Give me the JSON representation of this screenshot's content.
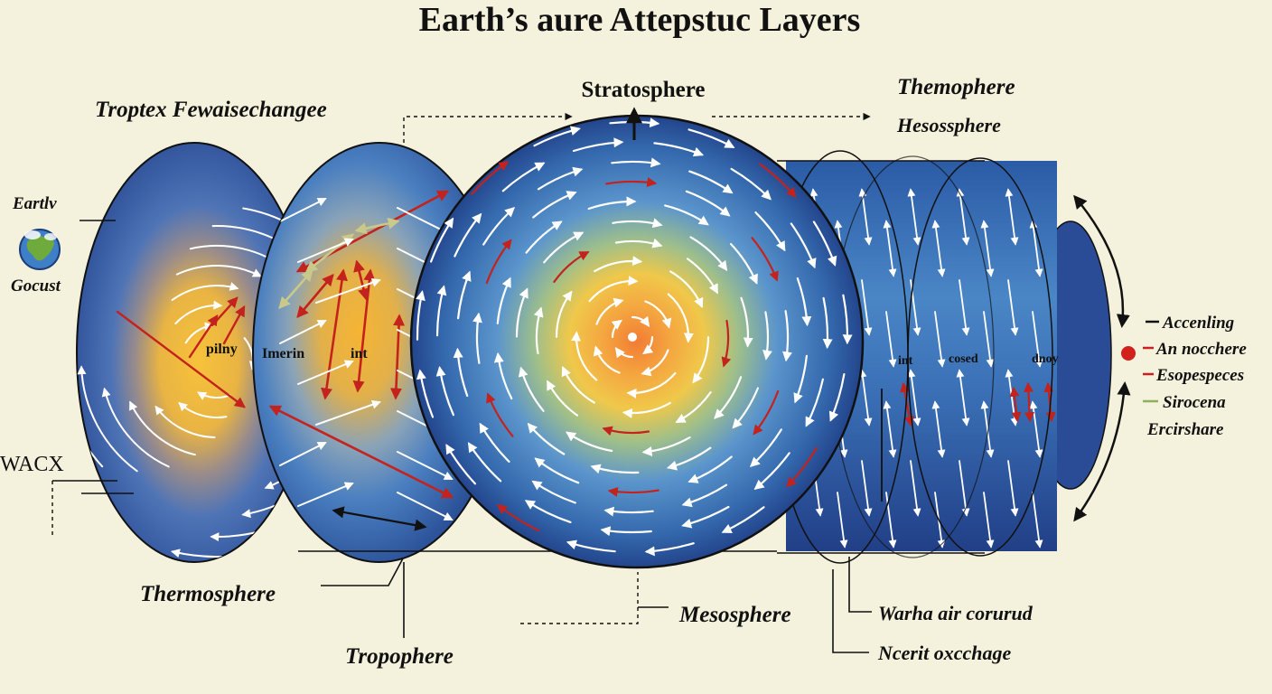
{
  "title": "Earth’s aure Attepstuc Layers",
  "labels": {
    "top_left": "Troptex Fewaisechangee",
    "stratosphere": "Stratosphere",
    "themophere": "Themophere",
    "hesossphere": "Hesossphere",
    "earth_top": "Eartlv",
    "earth_bottom": "Gocust",
    "wacx": "WACX",
    "thermosphere": "Thermosphere",
    "tropophere": "Tropophere",
    "mesosphere": "Mesosphere",
    "warha": "Warha air corurud",
    "ncerit": "Ncerit oxcchage"
  },
  "inner_labels": {
    "pilny": "pilny",
    "imerin": "Imerin",
    "int_left": "int",
    "int_right": "int",
    "cosed": "cosed",
    "dnoy": "dnoy"
  },
  "legend": [
    {
      "marker": "dash",
      "color": "#111111",
      "text": "Accenling"
    },
    {
      "marker": "dot-dash",
      "color": "#cc1f1f",
      "text": "An nocchere"
    },
    {
      "marker": "dash",
      "color": "#cc1f1f",
      "text": "Esopespeces"
    },
    {
      "marker": "dash",
      "color": "#8fae5e",
      "text": "Sirocena"
    },
    {
      "marker": "none",
      "color": "#111111",
      "text": "Ercirshare"
    }
  ],
  "colors": {
    "background": "#f4f1dc",
    "disc_blue": "#2f5fa8",
    "disc_dark": "#1e3f86",
    "core_yellow": "#f4c242",
    "core_orange": "#f08a3a",
    "arrow_red": "#c4221c",
    "arrow_white": "#ffffff",
    "arrow_olive": "#c9c98a"
  },
  "icons": {
    "earth": "earth-globe-icon"
  }
}
